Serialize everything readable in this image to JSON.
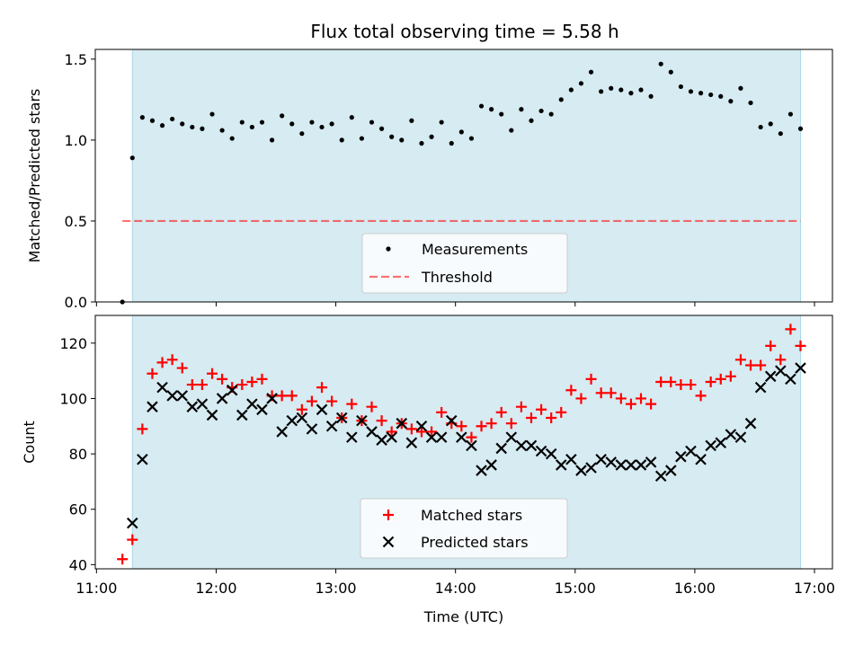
{
  "title": "Flux total observing time = 5.58 h",
  "colors": {
    "shade": "#add8e6",
    "threshold": "#ff0000",
    "measurement": "#000000",
    "matched": "#ff0000",
    "predicted": "#000000"
  },
  "chart_data": [
    {
      "type": "scatter",
      "panel": "top",
      "ylabel": "Matched/Predicted stars",
      "ylim": [
        0,
        1.56
      ],
      "yticks": [
        0.0,
        0.5,
        1.0,
        1.5
      ],
      "ytick_labels": [
        "0.0",
        "0.5",
        "1.0",
        "1.5"
      ],
      "xlim_hours": [
        10.99,
        17.15
      ],
      "observing_window": [
        "11:18",
        "16:53"
      ],
      "legend_position": "lower center",
      "threshold": {
        "name": "Threshold",
        "value": 0.5,
        "x_range": [
          "11:13",
          "16:53"
        ],
        "style": "dashed"
      },
      "series": [
        {
          "name": "Measurements",
          "x": [
            "11:13",
            "11:18",
            "11:23",
            "11:28",
            "11:33",
            "11:38",
            "11:43",
            "11:48",
            "11:53",
            "11:58",
            "12:03",
            "12:08",
            "12:13",
            "12:18",
            "12:23",
            "12:28",
            "12:33",
            "12:38",
            "12:43",
            "12:48",
            "12:53",
            "12:58",
            "13:03",
            "13:08",
            "13:13",
            "13:18",
            "13:23",
            "13:28",
            "13:33",
            "13:38",
            "13:43",
            "13:48",
            "13:53",
            "13:58",
            "14:03",
            "14:08",
            "14:13",
            "14:18",
            "14:23",
            "14:28",
            "14:33",
            "14:38",
            "14:43",
            "14:48",
            "14:53",
            "14:58",
            "15:03",
            "15:08",
            "15:13",
            "15:18",
            "15:23",
            "15:28",
            "15:33",
            "15:38",
            "15:43",
            "15:48",
            "15:53",
            "15:58",
            "16:03",
            "16:08",
            "16:13",
            "16:18",
            "16:23",
            "16:28",
            "16:33",
            "16:38",
            "16:43",
            "16:48",
            "16:53"
          ],
          "y": [
            0.0,
            0.89,
            1.14,
            1.12,
            1.09,
            1.13,
            1.1,
            1.08,
            1.07,
            1.16,
            1.06,
            1.01,
            1.11,
            1.08,
            1.11,
            1.0,
            1.15,
            1.1,
            1.04,
            1.11,
            1.08,
            1.1,
            1.0,
            1.14,
            1.01,
            1.11,
            1.07,
            1.02,
            1.0,
            1.12,
            0.98,
            1.02,
            1.11,
            0.98,
            1.05,
            1.01,
            1.21,
            1.19,
            1.16,
            1.06,
            1.19,
            1.12,
            1.18,
            1.16,
            1.25,
            1.31,
            1.35,
            1.42,
            1.3,
            1.32,
            1.31,
            1.29,
            1.31,
            1.27,
            1.47,
            1.42,
            1.33,
            1.3,
            1.29,
            1.28,
            1.27,
            1.24,
            1.32,
            1.23,
            1.08,
            1.1,
            1.04,
            1.16,
            1.07
          ]
        }
      ]
    },
    {
      "type": "scatter",
      "panel": "bottom",
      "ylabel": "Count",
      "xlabel": "Time (UTC)",
      "ylim": [
        38.5,
        130
      ],
      "yticks": [
        40,
        60,
        80,
        100,
        120
      ],
      "ytick_labels": [
        "40",
        "60",
        "80",
        "100",
        "120"
      ],
      "xlim_hours": [
        10.99,
        17.15
      ],
      "xticks": [
        "11:00",
        "12:00",
        "13:00",
        "14:00",
        "15:00",
        "16:00",
        "17:00"
      ],
      "observing_window": [
        "11:18",
        "16:53"
      ],
      "legend_position": "lower center",
      "series": [
        {
          "name": "Matched stars",
          "marker": "plus",
          "x": [
            "11:13",
            "11:18",
            "11:23",
            "11:28",
            "11:33",
            "11:38",
            "11:43",
            "11:48",
            "11:53",
            "11:58",
            "12:03",
            "12:08",
            "12:13",
            "12:18",
            "12:23",
            "12:28",
            "12:33",
            "12:38",
            "12:43",
            "12:48",
            "12:53",
            "12:58",
            "13:03",
            "13:08",
            "13:13",
            "13:18",
            "13:23",
            "13:28",
            "13:33",
            "13:38",
            "13:43",
            "13:48",
            "13:53",
            "13:58",
            "14:03",
            "14:08",
            "14:13",
            "14:18",
            "14:23",
            "14:28",
            "14:33",
            "14:38",
            "14:43",
            "14:48",
            "14:53",
            "14:58",
            "15:03",
            "15:08",
            "15:13",
            "15:18",
            "15:23",
            "15:28",
            "15:33",
            "15:38",
            "15:43",
            "15:48",
            "15:53",
            "15:58",
            "16:03",
            "16:08",
            "16:13",
            "16:18",
            "16:23",
            "16:28",
            "16:33",
            "16:38",
            "16:43",
            "16:48",
            "16:53"
          ],
          "y": [
            42,
            49,
            89,
            109,
            113,
            114,
            111,
            105,
            105,
            109,
            107,
            104,
            105,
            106,
            107,
            101,
            101,
            101,
            96,
            99,
            104,
            99,
            93,
            98,
            92,
            97,
            92,
            88,
            91,
            89,
            88,
            88,
            95,
            91,
            90,
            86,
            90,
            91,
            95,
            91,
            97,
            93,
            96,
            93,
            95,
            103,
            100,
            107,
            102,
            102,
            100,
            98,
            100,
            98,
            106,
            106,
            105,
            105,
            101,
            106,
            107,
            108,
            114,
            112,
            112,
            119,
            114,
            125,
            119
          ]
        },
        {
          "name": "Predicted stars",
          "marker": "x",
          "x": [
            "11:13",
            "11:18",
            "11:23",
            "11:28",
            "11:33",
            "11:38",
            "11:43",
            "11:48",
            "11:53",
            "11:58",
            "12:03",
            "12:08",
            "12:13",
            "12:18",
            "12:23",
            "12:28",
            "12:33",
            "12:38",
            "12:43",
            "12:48",
            "12:53",
            "12:58",
            "13:03",
            "13:08",
            "13:13",
            "13:18",
            "13:23",
            "13:28",
            "13:33",
            "13:38",
            "13:43",
            "13:48",
            "13:53",
            "13:58",
            "14:03",
            "14:08",
            "14:13",
            "14:18",
            "14:23",
            "14:28",
            "14:33",
            "14:38",
            "14:43",
            "14:48",
            "14:53",
            "14:58",
            "15:03",
            "15:08",
            "15:13",
            "15:18",
            "15:23",
            "15:28",
            "15:33",
            "15:38",
            "15:43",
            "15:48",
            "15:53",
            "15:58",
            "16:03",
            "16:08",
            "16:13",
            "16:18",
            "16:23",
            "16:28",
            "16:33",
            "16:38",
            "16:43",
            "16:48",
            "16:53"
          ],
          "y": [
            null,
            55,
            78,
            97,
            104,
            101,
            101,
            97,
            98,
            94,
            100,
            103,
            94,
            98,
            96,
            100,
            88,
            92,
            93,
            89,
            96,
            90,
            93,
            86,
            92,
            88,
            85,
            86,
            91,
            84,
            90,
            86,
            86,
            92,
            86,
            83,
            74,
            76,
            82,
            86,
            83,
            83,
            81,
            80,
            76,
            78,
            74,
            75,
            78,
            77,
            76,
            76,
            76,
            77,
            72,
            74,
            79,
            81,
            78,
            83,
            84,
            87,
            86,
            91,
            104,
            108,
            110,
            107,
            111
          ]
        }
      ]
    }
  ]
}
